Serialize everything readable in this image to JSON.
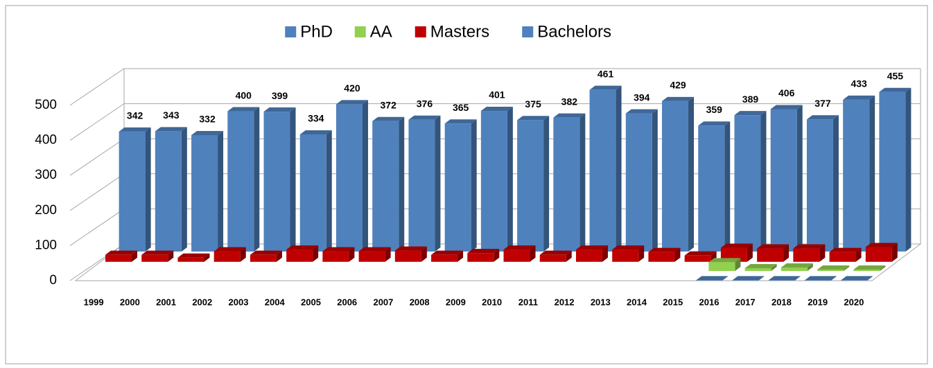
{
  "chart_data": {
    "type": "bar3d",
    "categories": [
      "1999",
      "2000",
      "2001",
      "2002",
      "2003",
      "2004",
      "2005",
      "2006",
      "2007",
      "2008",
      "2009",
      "2010",
      "2011",
      "2012",
      "2013",
      "2014",
      "2015",
      "2016",
      "2017",
      "2018",
      "2019",
      "2020"
    ],
    "series": [
      {
        "name": "PhD",
        "color": "#4f81bd",
        "values": [
          null,
          null,
          null,
          null,
          null,
          null,
          null,
          null,
          null,
          null,
          null,
          null,
          null,
          null,
          null,
          null,
          null,
          1,
          1,
          1,
          1,
          1
        ]
      },
      {
        "name": "AA",
        "color": "#92d050",
        "values": [
          null,
          null,
          null,
          null,
          null,
          null,
          null,
          null,
          null,
          null,
          null,
          null,
          null,
          null,
          null,
          null,
          null,
          25,
          8,
          10,
          4,
          4
        ]
      },
      {
        "name": "Masters",
        "color": "#c00000",
        "values": [
          20,
          20,
          12,
          30,
          20,
          35,
          30,
          30,
          32,
          20,
          25,
          35,
          20,
          35,
          35,
          28,
          18,
          40,
          38,
          38,
          28,
          42
        ]
      },
      {
        "name": "Bachelors",
        "color": "#4f81bd",
        "values": [
          342,
          343,
          332,
          400,
          399,
          334,
          420,
          372,
          376,
          365,
          401,
          375,
          382,
          461,
          394,
          429,
          359,
          389,
          406,
          377,
          433,
          455
        ]
      }
    ],
    "ylim": [
      0,
      500
    ],
    "yticks": [
      0,
      100,
      200,
      300,
      400,
      500
    ],
    "grid": true,
    "legend": "top"
  }
}
